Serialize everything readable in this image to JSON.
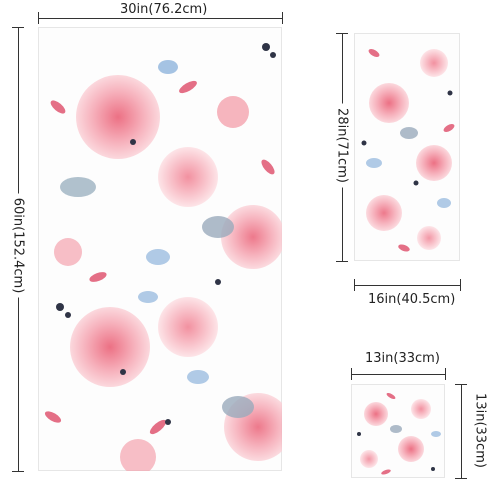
{
  "palette": {
    "pink": "#f29aa8",
    "pink_light": "#f8c3cb",
    "rose": "#ef7f93",
    "blue": "#8fb4dc",
    "gray": "#8a97a8",
    "navy": "#2f3446",
    "leaf": "#e46f86"
  },
  "towels": {
    "bath": {
      "width_label": "30in(76.2cm)",
      "height_label": "60in(152.4cm)"
    },
    "hand": {
      "width_label": "16in(40.5cm)",
      "height_label": "28in(71cm)"
    },
    "wash": {
      "width_label": "13in(33cm)",
      "height_label": "13in(33cm)"
    }
  }
}
